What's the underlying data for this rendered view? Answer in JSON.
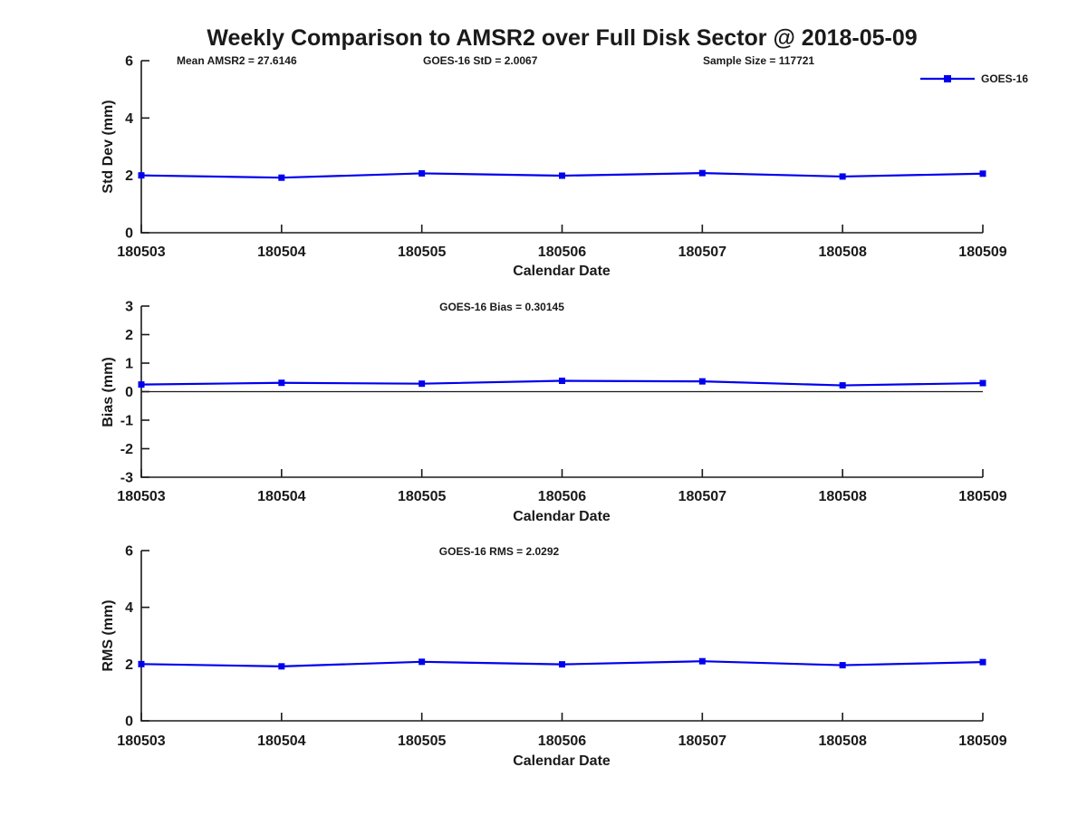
{
  "title": "Weekly Comparison to AMSR2 over Full Disk Sector @ 2018-05-09",
  "annotations": {
    "mean_amsr2": "Mean AMSR2 = 27.6146",
    "goes16_std": "GOES-16 StD = 2.0067",
    "sample_size": "Sample Size = 117721"
  },
  "legend": {
    "label": "GOES-16",
    "line_color": "#0000ee",
    "marker": "square"
  },
  "colors": {
    "series_blue": "#0000ee",
    "axis_black": "#1a1a1a"
  },
  "chart_data": [
    {
      "type": "line",
      "title": "",
      "ylabel": "Std Dev (mm)",
      "xlabel": "Calendar Date",
      "x": [
        "180503",
        "180504",
        "180505",
        "180506",
        "180507",
        "180508",
        "180509"
      ],
      "series": [
        {
          "name": "GOES-16",
          "values": [
            2.0,
            1.92,
            2.07,
            1.99,
            2.08,
            1.96,
            2.06
          ]
        }
      ],
      "ylim": [
        0,
        6
      ],
      "yticks": [
        0,
        2,
        4,
        6
      ],
      "zero_line": false,
      "grid": false,
      "legend_position": "top-right",
      "marker": "square"
    },
    {
      "type": "line",
      "title": "GOES-16 Bias  = 0.30145",
      "ylabel": "Bias (mm)",
      "xlabel": "Calendar Date",
      "x": [
        "180503",
        "180504",
        "180505",
        "180506",
        "180507",
        "180508",
        "180509"
      ],
      "series": [
        {
          "name": "GOES-16",
          "values": [
            0.25,
            0.31,
            0.28,
            0.38,
            0.36,
            0.22,
            0.3
          ]
        }
      ],
      "ylim": [
        -3,
        3
      ],
      "yticks": [
        3,
        2,
        1,
        0,
        -1,
        -2,
        -3
      ],
      "zero_line": true,
      "grid": false,
      "marker": "square"
    },
    {
      "type": "line",
      "title": "GOES-16 RMS = 2.0292",
      "ylabel": "RMS (mm)",
      "xlabel": "Calendar Date",
      "x": [
        "180503",
        "180504",
        "180505",
        "180506",
        "180507",
        "180508",
        "180509"
      ],
      "series": [
        {
          "name": "GOES-16",
          "values": [
            2.0,
            1.92,
            2.08,
            1.99,
            2.1,
            1.96,
            2.07
          ]
        }
      ],
      "ylim": [
        0,
        6
      ],
      "yticks": [
        0,
        2,
        4,
        6
      ],
      "zero_line": false,
      "grid": false,
      "marker": "square"
    }
  ]
}
